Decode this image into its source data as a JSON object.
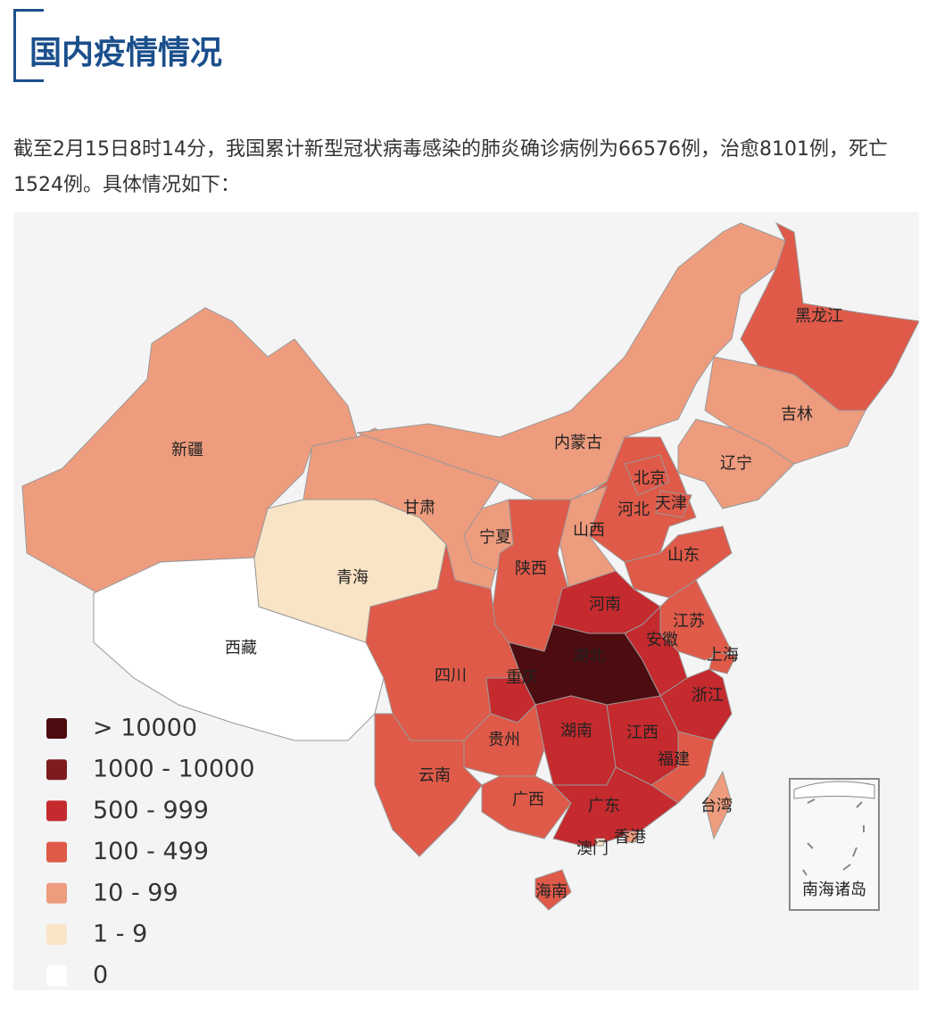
{
  "header": {
    "title": "国内疫情情况"
  },
  "paragraph": "截至2月15日8时14分，我国累计新型冠状病毒感染的肺炎确诊病例为66576例，治愈8101例，死亡1524例。具体情况如下：",
  "map": {
    "legend": [
      {
        "label": "> 10000",
        "color": "#4c0c10"
      },
      {
        "label": "1000 - 10000",
        "color": "#7d1b20"
      },
      {
        "label": "500 - 999",
        "color": "#c42a2e"
      },
      {
        "label": "100 - 499",
        "color": "#df5a49"
      },
      {
        "label": "10 - 99",
        "color": "#ee9c7e"
      },
      {
        "label": "1 - 9",
        "color": "#fae4c6"
      },
      {
        "label": "0",
        "color": "#ffffff"
      }
    ],
    "regions": [
      {
        "name": "新疆",
        "color": "#ee9c7e"
      },
      {
        "name": "西藏",
        "color": "#ffffff"
      },
      {
        "name": "青海",
        "color": "#fae4c6"
      },
      {
        "name": "甘肃",
        "color": "#ee9c7e"
      },
      {
        "name": "内蒙古",
        "color": "#ee9c7e"
      },
      {
        "name": "黑龙江",
        "color": "#df5a49"
      },
      {
        "name": "吉林",
        "color": "#ee9c7e"
      },
      {
        "name": "辽宁",
        "color": "#ee9c7e"
      },
      {
        "name": "河北",
        "color": "#df5a49"
      },
      {
        "name": "北京",
        "color": "#df5a49"
      },
      {
        "name": "天津",
        "color": "#df5a49"
      },
      {
        "name": "山西",
        "color": "#ee9c7e"
      },
      {
        "name": "宁夏",
        "color": "#ee9c7e"
      },
      {
        "name": "陕西",
        "color": "#df5a49"
      },
      {
        "name": "山东",
        "color": "#df5a49"
      },
      {
        "name": "河南",
        "color": "#c42a2e"
      },
      {
        "name": "江苏",
        "color": "#df5a49"
      },
      {
        "name": "安徽",
        "color": "#c42a2e"
      },
      {
        "name": "上海",
        "color": "#df5a49"
      },
      {
        "name": "湖北",
        "color": "#4c0c10"
      },
      {
        "name": "四川",
        "color": "#df5a49"
      },
      {
        "name": "重庆",
        "color": "#c42a2e"
      },
      {
        "name": "浙江",
        "color": "#c42a2e"
      },
      {
        "name": "江西",
        "color": "#c42a2e"
      },
      {
        "name": "湖南",
        "color": "#c42a2e"
      },
      {
        "name": "贵州",
        "color": "#df5a49"
      },
      {
        "name": "云南",
        "color": "#df5a49"
      },
      {
        "name": "广西",
        "color": "#df5a49"
      },
      {
        "name": "福建",
        "color": "#df5a49"
      },
      {
        "name": "广东",
        "color": "#c42a2e"
      },
      {
        "name": "海南",
        "color": "#df5a49"
      },
      {
        "name": "台湾",
        "color": "#ee9c7e"
      },
      {
        "name": "香港",
        "color": "#ee9c7e"
      },
      {
        "name": "澳门",
        "color": "#fae4c6"
      }
    ],
    "inset_label": "南海诸岛"
  }
}
